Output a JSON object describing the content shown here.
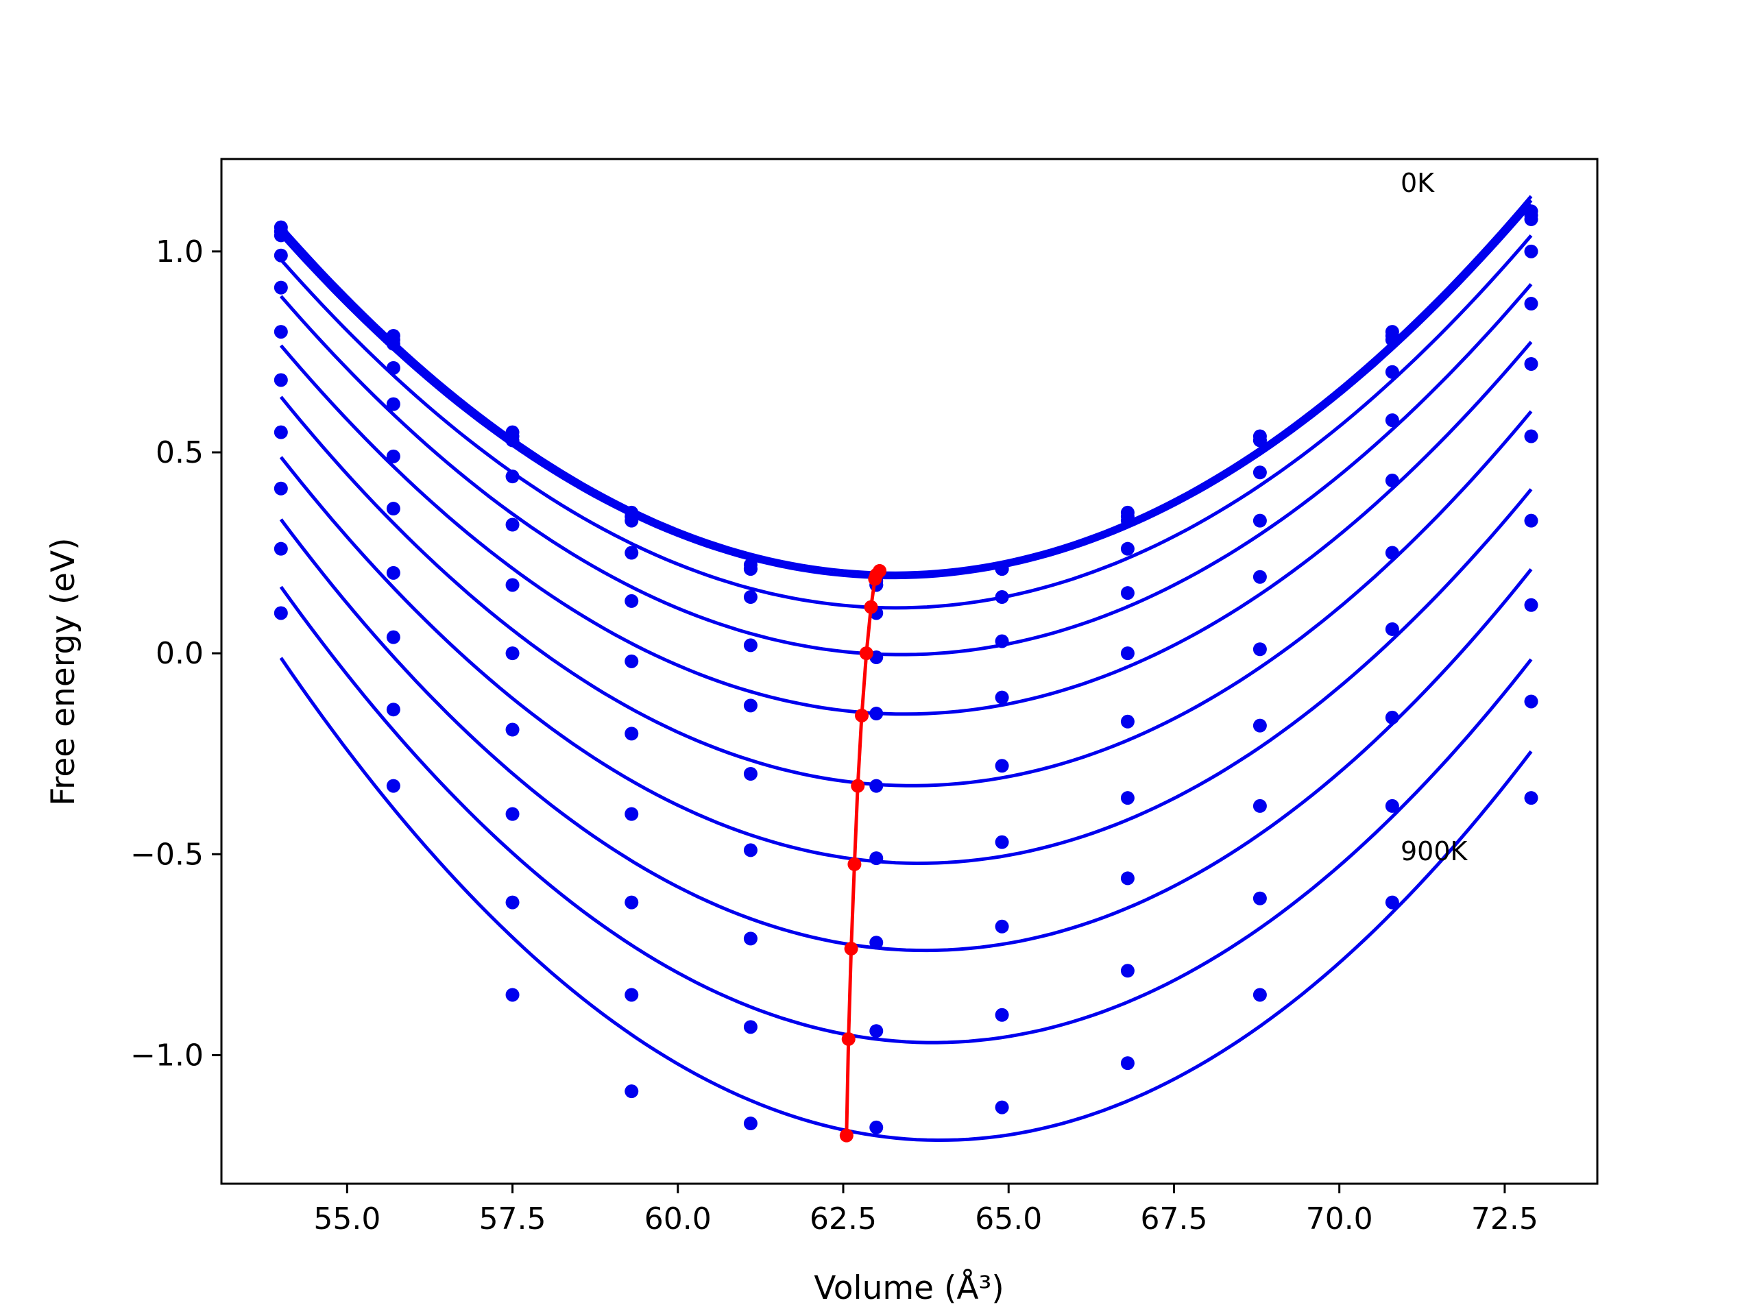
{
  "chart_data": {
    "type": "scatter",
    "xlabel": "Volume (Å³)",
    "ylabel": "Free energy (eV)",
    "xlim": [
      53.1,
      73.9
    ],
    "ylim": [
      -1.32,
      1.23
    ],
    "xticks": [
      55.0,
      57.5,
      60.0,
      62.5,
      65.0,
      67.5,
      70.0,
      72.5
    ],
    "xtick_labels": [
      "55.0",
      "57.5",
      "60.0",
      "62.5",
      "65.0",
      "67.5",
      "70.0",
      "72.5"
    ],
    "yticks": [
      1.0,
      0.5,
      0.0,
      -0.5,
      -1.0
    ],
    "ytick_labels": [
      "1.0",
      "0.5",
      "0.0",
      "−0.5",
      "−1.0"
    ],
    "grid": false,
    "annotations": [
      {
        "text": "0K",
        "x": 70.8,
        "y": 1.15
      },
      {
        "text": "900K",
        "x": 70.8,
        "y": -0.52
      }
    ],
    "x": [
      54.0,
      55.7,
      57.5,
      59.3,
      61.1,
      63.0,
      64.9,
      66.8,
      68.8,
      70.8,
      72.9
    ],
    "series": [
      {
        "points": [
          1.06,
          0.79,
          0.55,
          0.35,
          0.22,
          0.18,
          0.21,
          0.35,
          0.54,
          0.8,
          1.1
        ],
        "fit_min": {
          "x": 63.05,
          "y": 0.205
        }
      },
      {
        "points": [
          1.05,
          0.78,
          0.54,
          0.34,
          0.21,
          0.17,
          0.21,
          0.34,
          0.53,
          0.79,
          1.09
        ],
        "fit_min": {
          "x": 63.0,
          "y": 0.195
        }
      },
      {
        "points": [
          1.04,
          0.77,
          0.53,
          0.33,
          0.21,
          0.17,
          0.21,
          0.33,
          0.53,
          0.78,
          1.08
        ],
        "fit_min": {
          "x": 62.98,
          "y": 0.185
        }
      },
      {
        "points": [
          0.99,
          0.71,
          0.44,
          0.25,
          0.14,
          0.1,
          0.14,
          0.26,
          0.45,
          0.7,
          1.0
        ],
        "fit_min": {
          "x": 62.92,
          "y": 0.115
        }
      },
      {
        "points": [
          0.91,
          0.62,
          0.32,
          0.13,
          0.02,
          -0.01,
          0.03,
          0.15,
          0.33,
          0.58,
          0.87
        ],
        "fit_min": {
          "x": 62.85,
          "y": 0.0
        }
      },
      {
        "points": [
          0.8,
          0.49,
          0.17,
          -0.02,
          -0.13,
          -0.15,
          -0.11,
          0.0,
          0.19,
          0.43,
          0.72
        ],
        "fit_min": {
          "x": 62.78,
          "y": -0.155
        }
      },
      {
        "points": [
          0.68,
          0.36,
          0.0,
          -0.2,
          -0.3,
          -0.33,
          -0.28,
          -0.17,
          0.01,
          0.25,
          0.54
        ],
        "fit_min": {
          "x": 62.72,
          "y": -0.33
        }
      },
      {
        "points": [
          0.55,
          0.2,
          -0.19,
          -0.4,
          -0.49,
          -0.51,
          -0.47,
          -0.36,
          -0.18,
          0.06,
          0.33
        ],
        "fit_min": {
          "x": 62.67,
          "y": -0.525
        }
      },
      {
        "points": [
          0.41,
          0.04,
          -0.4,
          -0.62,
          -0.71,
          -0.72,
          -0.68,
          -0.56,
          -0.38,
          -0.16,
          0.12
        ],
        "fit_min": {
          "x": 62.62,
          "y": -0.735
        }
      },
      {
        "points": [
          0.26,
          -0.14,
          -0.62,
          -0.85,
          -0.93,
          -0.94,
          -0.9,
          -0.79,
          -0.61,
          -0.38,
          -0.12
        ],
        "fit_min": {
          "x": 62.58,
          "y": -0.96
        }
      },
      {
        "points": [
          0.1,
          -0.33,
          -0.85,
          -1.09,
          -1.17,
          -1.18,
          -1.13,
          -1.02,
          -0.85,
          -0.62,
          -0.36
        ],
        "fit_min": {
          "x": 62.55,
          "y": -1.2
        }
      }
    ],
    "colors": {
      "series": "#0000ee",
      "minima": "#ff0000",
      "axes": "#000000"
    }
  }
}
